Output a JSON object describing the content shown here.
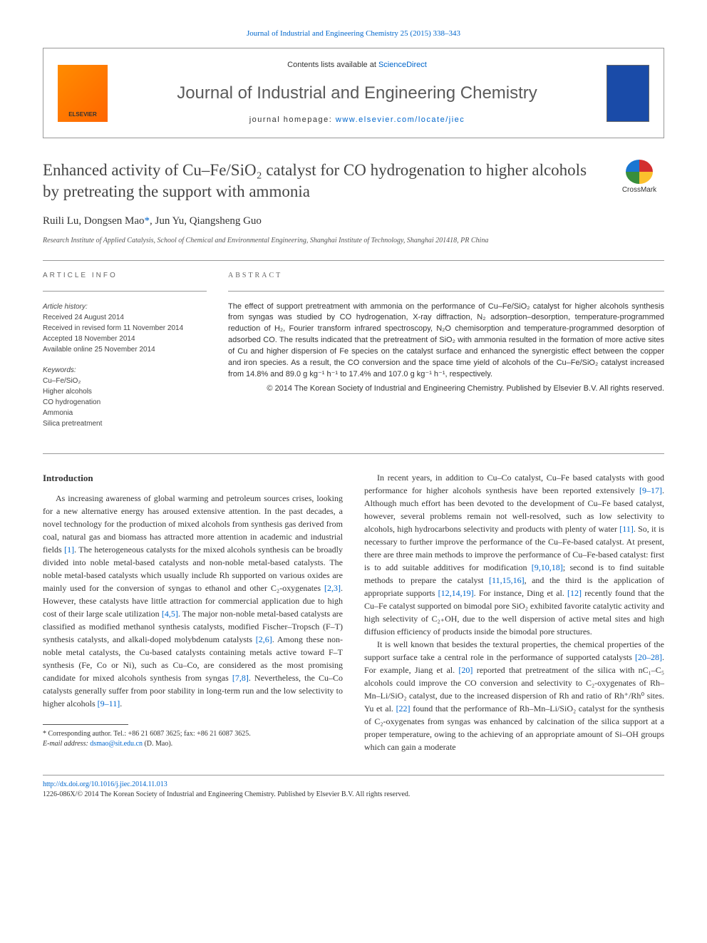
{
  "citation_link": "Journal of Industrial and Engineering Chemistry 25 (2015) 338–343",
  "header": {
    "logo_text": "ELSEVIER",
    "contents_prefix": "Contents lists available at ",
    "contents_link": "ScienceDirect",
    "journal_name": "Journal of Industrial and Engineering Chemistry",
    "homepage_prefix": "journal homepage: ",
    "homepage_url": "www.elsevier.com/locate/jiec"
  },
  "title": "Enhanced activity of Cu–Fe/SiO₂ catalyst for CO hydrogenation to higher alcohols by pretreating the support with ammonia",
  "crossmark_label": "CrossMark",
  "authors_line": "Ruili Lu, Dongsen Mao",
  "corr_mark": "*",
  "authors_rest": ", Jun Yu, Qiangsheng Guo",
  "affiliation": "Research Institute of Applied Catalysis, School of Chemical and Environmental Engineering, Shanghai Institute of Technology, Shanghai 201418, PR China",
  "info": {
    "label": "ARTICLE INFO",
    "history_label": "Article history:",
    "received": "Received 24 August 2014",
    "revised": "Received in revised form 11 November 2014",
    "accepted": "Accepted 18 November 2014",
    "online": "Available online 25 November 2014",
    "keywords_label": "Keywords:",
    "kw1": "Cu–Fe/SiO₂",
    "kw2": "Higher alcohols",
    "kw3": "CO hydrogenation",
    "kw4": "Ammonia",
    "kw5": "Silica pretreatment"
  },
  "abstract": {
    "label": "ABSTRACT",
    "text": "The effect of support pretreatment with ammonia on the performance of Cu–Fe/SiO₂ catalyst for higher alcohols synthesis from syngas was studied by CO hydrogenation, X-ray diffraction, N₂ adsorption–desorption, temperature-programmed reduction of H₂, Fourier transform infrared spectroscopy, N₂O chemisorption and temperature-programmed desorption of adsorbed CO. The results indicated that the pretreatment of SiO₂ with ammonia resulted in the formation of more active sites of Cu and higher dispersion of Fe species on the catalyst surface and enhanced the synergistic effect between the copper and iron species. As a result, the CO conversion and the space time yield of alcohols of the Cu–Fe/SiO₂ catalyst increased from 14.8% and 89.0 g kg⁻¹ h⁻¹ to 17.4% and 107.0 g kg⁻¹ h⁻¹, respectively.",
    "copyright": "© 2014 The Korean Society of Industrial and Engineering Chemistry. Published by Elsevier B.V. All rights reserved."
  },
  "intro": {
    "heading": "Introduction",
    "p1a": "As increasing awareness of global warming and petroleum sources crises, looking for a new alternative energy has aroused extensive attention. In the past decades, a novel technology for the production of mixed alcohols from synthesis gas derived from coal, natural gas and biomass has attracted more attention in academic and industrial fields ",
    "r1": "[1]",
    "p1b": ". The heterogeneous catalysts for the mixed alcohols synthesis can be broadly divided into noble metal-based catalysts and non-noble metal-based catalysts. The noble metal-based catalysts which usually include Rh supported on various oxides are mainly used for the conversion of syngas to ethanol and other C₂-oxygenates ",
    "r2": "[2,3]",
    "p1c": ". However, these catalysts have little attraction for commercial application due to high cost of their large scale utilization ",
    "r3": "[4,5]",
    "p1d": ". The major non-noble metal-based catalysts are classified as modified methanol synthesis catalysts, modified Fischer–Tropsch (F–T) synthesis catalysts, and alkali-doped molybdenum catalysts ",
    "r4": "[2,6]",
    "p1e": ". Among these non-noble metal catalysts, the Cu-based catalysts containing metals active toward F–T synthesis (Fe, Co or Ni), such as Cu–Co, are considered as the most promising candidate for mixed alcohols synthesis from syngas ",
    "r5": "[7,8]",
    "p1f": ". Nevertheless, the Cu–Co catalysts generally suffer from poor stability in long-term run and the low selectivity to higher alcohols ",
    "r6": "[9–11]",
    "p1g": ".",
    "p2a": "In recent years, in addition to Cu–Co catalyst, Cu–Fe based catalysts with good performance for higher alcohols synthesis have been reported extensively ",
    "r7": "[9–17]",
    "p2b": ". Although much effort has been devoted to the development of Cu–Fe based catalyst, however, several problems remain not well-resolved, such as low selectivity to alcohols, high hydrocarbons selectivity and products with plenty of water ",
    "r8": "[11]",
    "p2c": ". So, it is necessary to further improve the performance of the Cu–Fe-based catalyst. At present, there are three main methods to improve the performance of Cu–Fe-based catalyst: first is to add suitable additives for modification ",
    "r9": "[9,10,18]",
    "p2d": "; second is to find suitable methods to prepare the catalyst ",
    "r10": "[11,15,16]",
    "p2e": ", and the third is the application of appropriate supports ",
    "r11": "[12,14,19]",
    "p2f": ". For instance, Ding et al. ",
    "r12": "[12]",
    "p2g": " recently found that the Cu–Fe catalyst supported on bimodal pore SiO₂ exhibited favorite catalytic activity and high selectivity of C₂₊OH, due to the well dispersion of active metal sites and high diffusion efficiency of products inside the bimodal pore structures.",
    "p3a": "It is well known that besides the textural properties, the chemical properties of the support surface take a central role in the performance of supported catalysts ",
    "r13": "[20–28]",
    "p3b": ". For example, Jiang et al. ",
    "r14": "[20]",
    "p3c": " reported that pretreatment of the silica with nC₁–C₅ alcohols could improve the CO conversion and selectivity to C₂-oxygenates of Rh–Mn–Li/SiO₂ catalyst, due to the increased dispersion of Rh and ratio of Rh⁺/Rh⁰ sites. Yu et al. ",
    "r15": "[22]",
    "p3d": " found that the performance of Rh–Mn–Li/SiO₂ catalyst for the synthesis of C₂-oxygenates from syngas was enhanced by calcination of the silica support at a proper temperature, owing to the achieving of an appropriate amount of Si–OH groups which can gain a moderate"
  },
  "footnote": {
    "corr": "* Corresponding author. Tel.: +86 21 6087 3625; fax: +86 21 6087 3625.",
    "email_label": "E-mail address: ",
    "email": "dsmao@sit.edu.cn",
    "email_suffix": " (D. Mao)."
  },
  "footer": {
    "doi": "http://dx.doi.org/10.1016/j.jiec.2014.11.013",
    "issn_copy": "1226-086X/© 2014 The Korean Society of Industrial and Engineering Chemistry. Published by Elsevier B.V. All rights reserved."
  },
  "colors": {
    "link": "#0066cc",
    "text": "#333333",
    "elsevier_orange": "#ff8c00",
    "cover_blue": "#1a4ba8",
    "rule": "#999999"
  }
}
